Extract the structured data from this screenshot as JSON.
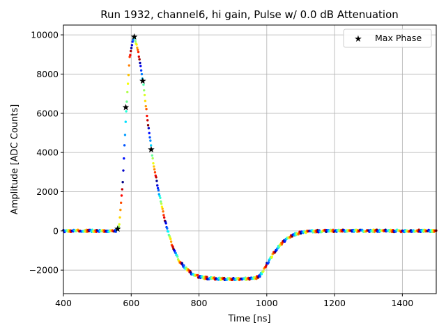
{
  "chart_data": {
    "type": "scatter",
    "title": "Run 1932, channel6, hi gain, Pulse w/ 0.0 dB Attenuation",
    "xlabel": "Time [ns]",
    "ylabel": "Amplitude [ADC Counts]",
    "xlim": [
      400,
      1500
    ],
    "ylim": [
      -3200,
      10500
    ],
    "xticks": [
      400,
      600,
      800,
      1000,
      1200,
      1400
    ],
    "yticks": [
      -2000,
      0,
      2000,
      4000,
      6000,
      8000,
      10000
    ],
    "grid": true,
    "colormap": "jet",
    "legend": {
      "position": "top-right",
      "entries": [
        "Max Phase"
      ]
    },
    "pulse_profile": {
      "t": [
        400,
        555,
        565,
        575,
        585,
        595,
        605,
        610,
        620,
        635,
        650,
        665,
        680,
        700,
        720,
        740,
        760,
        780,
        800,
        830,
        870,
        920,
        965,
        980,
        1000,
        1020,
        1040,
        1060,
        1080,
        1100,
        1130,
        1200,
        1500
      ],
      "amplitude": [
        0,
        0,
        300,
        2500,
        6000,
        8800,
        9700,
        9850,
        9200,
        7600,
        5400,
        3500,
        2100,
        500,
        -700,
        -1500,
        -1900,
        -2200,
        -2350,
        -2420,
        -2450,
        -2460,
        -2420,
        -2300,
        -1700,
        -1150,
        -700,
        -400,
        -200,
        -80,
        -20,
        0,
        0
      ]
    },
    "max_phase_points": [
      {
        "x": 560,
        "y": 100
      },
      {
        "x": 584,
        "y": 6300
      },
      {
        "x": 609,
        "y": 9900
      },
      {
        "x": 634,
        "y": 7650
      },
      {
        "x": 659,
        "y": 4150
      }
    ],
    "colors": {
      "grid": "#b0b0b0",
      "marker": "#000000"
    }
  }
}
